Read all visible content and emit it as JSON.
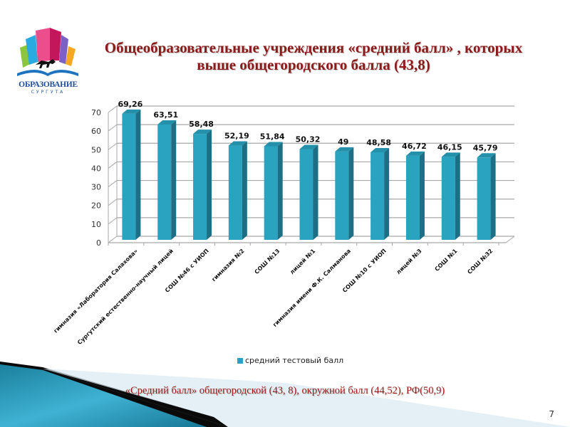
{
  "logo": {
    "line1": "ОБРАЗОВАНИЕ",
    "line2": "СУРГУТА"
  },
  "title": {
    "line1": "Общеобразовательные учреждения  «средний балл» , которых",
    "line2": "выше общегородского балла (43,8)"
  },
  "chart_data": {
    "type": "bar",
    "title": "",
    "xlabel": "",
    "ylabel": "",
    "ylim": [
      0,
      70
    ],
    "yticks": [
      0,
      10,
      20,
      30,
      40,
      50,
      60,
      70
    ],
    "grid": true,
    "three_d": true,
    "legend_position": "bottom",
    "categories": [
      "гимназия «Лаборатория Салахова»",
      "Сургутский естественно-научный лицей",
      "СОШ №46 с УИОП",
      "гимназия №2",
      "СОШ №13",
      "лицей №1",
      "гимназия имени Ф.К. Салманова",
      "СОШ №10 с УИОП",
      "лицей №3",
      "СОШ №1",
      "СОШ №32"
    ],
    "series": [
      {
        "name": "средний тестовый балл",
        "color": "#2aa3c0",
        "values": [
          69.26,
          63.51,
          58.48,
          52.19,
          51.84,
          50.32,
          49,
          48.58,
          46.72,
          46.15,
          45.79
        ],
        "labels": [
          "69,26",
          "63,51",
          "58,48",
          "52,19",
          "51,84",
          "50,32",
          "49",
          "48,58",
          "46,72",
          "46,15",
          "45,79"
        ]
      }
    ]
  },
  "legend": {
    "label": "средний тестовый балл"
  },
  "footer_note": "«Средний балл» общегородской (43, 8), окружной  балл (44,52), РФ(50,9)",
  "page_number": "7",
  "colors": {
    "title": "#8b1a1a",
    "bar_front": "#2aa3c0",
    "bar_side": "#1c6f84",
    "bar_top": "#2590a9"
  }
}
